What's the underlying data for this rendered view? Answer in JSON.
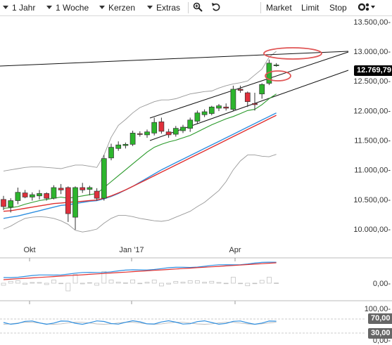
{
  "toolbar": {
    "period": "1 Jahr",
    "interval": "1 Woche",
    "chart_type": "Kerzen",
    "extras": "Extras",
    "zoom_icon": "zoom-icon",
    "undo_icon": "undo-icon",
    "market": "Market",
    "limit": "Limit",
    "stop": "Stop",
    "settings_icon": "settings-icon"
  },
  "price_axis": {
    "labels": [
      "13.500,00-",
      "13.000,00-",
      "12.500,00-",
      "12.000,00-",
      "11.500,00-",
      "11.000,00-",
      "10.500,00-",
      "10.000,00-"
    ],
    "current_price": "12.769,79"
  },
  "time_axis": {
    "labels": [
      "Okt",
      "Jan '17",
      "Apr"
    ]
  },
  "indicator1": {
    "labels": [
      "0,00-"
    ]
  },
  "indicator2": {
    "labels": [
      "100,00-",
      "70,00",
      "30,00",
      "0,00-"
    ]
  },
  "colors": {
    "up": "#2db52d",
    "down": "#e0303c",
    "sma_fast": "#2a9a2a",
    "sma_mid": "#2f8fe0",
    "sma_slow": "#e03030",
    "band": "#999999",
    "highlight": "#e05555",
    "badge": "#000000",
    "badge_grey": "#666666"
  },
  "chart_data": {
    "type": "candlestick",
    "candles": [
      {
        "o": 10500,
        "h": 10560,
        "l": 10320,
        "c": 10380,
        "d": "down"
      },
      {
        "o": 10370,
        "h": 10520,
        "l": 10280,
        "c": 10480,
        "d": "up"
      },
      {
        "o": 10480,
        "h": 10700,
        "l": 10420,
        "c": 10620,
        "d": "up"
      },
      {
        "o": 10610,
        "h": 10660,
        "l": 10520,
        "c": 10540,
        "d": "down"
      },
      {
        "o": 10540,
        "h": 10620,
        "l": 10480,
        "c": 10580,
        "d": "up"
      },
      {
        "o": 10560,
        "h": 10660,
        "l": 10500,
        "c": 10600,
        "d": "up"
      },
      {
        "o": 10600,
        "h": 10620,
        "l": 10480,
        "c": 10520,
        "d": "down"
      },
      {
        "o": 10520,
        "h": 10740,
        "l": 10500,
        "c": 10700,
        "d": "up"
      },
      {
        "o": 10690,
        "h": 10760,
        "l": 10590,
        "c": 10660,
        "d": "down"
      },
      {
        "o": 10700,
        "h": 10720,
        "l": 10120,
        "c": 10260,
        "d": "down"
      },
      {
        "o": 10200,
        "h": 10720,
        "l": 9990,
        "c": 10700,
        "d": "up"
      },
      {
        "o": 10700,
        "h": 10780,
        "l": 10610,
        "c": 10660,
        "d": "down"
      },
      {
        "o": 10670,
        "h": 10730,
        "l": 10570,
        "c": 10700,
        "d": "up"
      },
      {
        "o": 10640,
        "h": 10690,
        "l": 10480,
        "c": 10520,
        "d": "down"
      },
      {
        "o": 10520,
        "h": 11250,
        "l": 10480,
        "c": 11190,
        "d": "up"
      },
      {
        "o": 11200,
        "h": 11440,
        "l": 11160,
        "c": 11380,
        "d": "up"
      },
      {
        "o": 11360,
        "h": 11480,
        "l": 11320,
        "c": 11420,
        "d": "up"
      },
      {
        "o": 11410,
        "h": 11460,
        "l": 11360,
        "c": 11430,
        "d": "up"
      },
      {
        "o": 11430,
        "h": 11660,
        "l": 11400,
        "c": 11620,
        "d": "up"
      },
      {
        "o": 11610,
        "h": 11650,
        "l": 11560,
        "c": 11600,
        "d": "down"
      },
      {
        "o": 11590,
        "h": 11680,
        "l": 11540,
        "c": 11640,
        "d": "up"
      },
      {
        "o": 11620,
        "h": 11880,
        "l": 11580,
        "c": 11800,
        "d": "up"
      },
      {
        "o": 11810,
        "h": 11880,
        "l": 11610,
        "c": 11650,
        "d": "down"
      },
      {
        "o": 11640,
        "h": 11690,
        "l": 11540,
        "c": 11590,
        "d": "down"
      },
      {
        "o": 11600,
        "h": 11740,
        "l": 11560,
        "c": 11700,
        "d": "up"
      },
      {
        "o": 11660,
        "h": 11760,
        "l": 11620,
        "c": 11720,
        "d": "up"
      },
      {
        "o": 11700,
        "h": 11880,
        "l": 11640,
        "c": 11840,
        "d": "up"
      },
      {
        "o": 11820,
        "h": 12000,
        "l": 11780,
        "c": 11960,
        "d": "up"
      },
      {
        "o": 11930,
        "h": 12020,
        "l": 11890,
        "c": 11980,
        "d": "up"
      },
      {
        "o": 11950,
        "h": 12080,
        "l": 11920,
        "c": 12060,
        "d": "up"
      },
      {
        "o": 12040,
        "h": 12110,
        "l": 11990,
        "c": 12080,
        "d": "up"
      },
      {
        "o": 12060,
        "h": 12120,
        "l": 12000,
        "c": 12040,
        "d": "down"
      },
      {
        "o": 12020,
        "h": 12420,
        "l": 11990,
        "c": 12360,
        "d": "up"
      },
      {
        "o": 12360,
        "h": 12420,
        "l": 12300,
        "c": 12340,
        "d": "down"
      },
      {
        "o": 12300,
        "h": 12320,
        "l": 12060,
        "c": 12150,
        "d": "down"
      },
      {
        "o": 12120,
        "h": 12300,
        "l": 12000,
        "c": 12100,
        "d": "down"
      },
      {
        "o": 12280,
        "h": 12460,
        "l": 12200,
        "c": 12440,
        "d": "up"
      },
      {
        "o": 12460,
        "h": 12860,
        "l": 12430,
        "c": 12800,
        "d": "up"
      },
      {
        "o": 12760,
        "h": 12800,
        "l": 12740,
        "c": 12770,
        "d": "up"
      }
    ],
    "sma_fast": [
      10350,
      10360,
      10380,
      10420,
      10450,
      10480,
      10500,
      10520,
      10540,
      10520,
      10540,
      10560,
      10580,
      10600,
      10700,
      10800,
      10900,
      11000,
      11100,
      11200,
      11300,
      11380,
      11430,
      11470,
      11500,
      11540,
      11580,
      11640,
      11700,
      11760,
      11810,
      11860,
      11900,
      11950,
      12000,
      12020,
      12100,
      12200,
      12280
    ],
    "sma_mid": [
      10180,
      10200,
      10220,
      10250,
      10280,
      10310,
      10340,
      10370,
      10400,
      10410,
      10430,
      10450,
      10470,
      10480,
      10510,
      10550,
      10600,
      10660,
      10720,
      10790,
      10860,
      10930,
      11000,
      11060,
      11120,
      11180,
      11240,
      11300,
      11360,
      11420,
      11480,
      11540,
      11600,
      11660,
      11720,
      11780,
      11840,
      11900,
      11960
    ],
    "sma_slow": [
      10300,
      10310,
      10330,
      10350,
      10370,
      10390,
      10410,
      10430,
      10440,
      10450,
      10460,
      10470,
      10480,
      10490,
      10520,
      10560,
      10610,
      10660,
      10720,
      10780,
      10840,
      10900,
      10960,
      11020,
      11080,
      11140,
      11200,
      11260,
      11320,
      11380,
      11440,
      11500,
      11560,
      11620,
      11680,
      11740,
      11800,
      11860,
      11920
    ],
    "bb_upper": [
      10980,
      11000,
      11020,
      11040,
      11050,
      11050,
      11040,
      11030,
      11020,
      11050,
      11080,
      11080,
      11060,
      11040,
      11250,
      11550,
      11750,
      11850,
      11960,
      12050,
      12100,
      12150,
      12180,
      12180,
      12200,
      12240,
      12280,
      12300,
      12320,
      12330,
      12380,
      12420,
      12450,
      12470,
      12500,
      12600,
      12700,
      12900,
      13000
    ],
    "bb_lower": [
      10000,
      10050,
      10120,
      10180,
      10200,
      10210,
      10200,
      10180,
      10140,
      10080,
      9980,
      9950,
      9970,
      10000,
      10100,
      10180,
      10230,
      10230,
      10210,
      10180,
      10160,
      10140,
      10130,
      10150,
      10200,
      10250,
      10300,
      10380,
      10450,
      10550,
      10650,
      10800,
      11000,
      11150,
      11250,
      11250,
      11230,
      11220,
      11260
    ],
    "y_range": [
      9700,
      13800
    ]
  }
}
